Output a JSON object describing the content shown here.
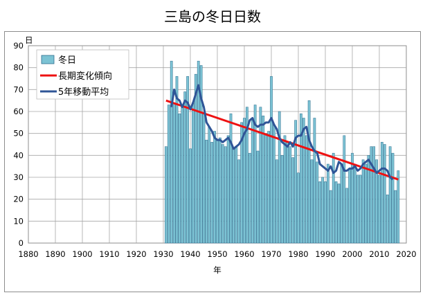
{
  "chart_data": {
    "type": "bar",
    "title": "三島の冬日日数",
    "ylabel": "日",
    "xlabel": "年",
    "xlim": [
      1880,
      2020
    ],
    "ylim": [
      0,
      90
    ],
    "x_ticks": [
      1880,
      1890,
      1900,
      1910,
      1920,
      1930,
      1940,
      1950,
      1960,
      1970,
      1980,
      1990,
      2000,
      2010,
      2020
    ],
    "y_ticks": [
      0,
      10,
      20,
      30,
      40,
      50,
      60,
      70,
      80,
      90
    ],
    "grid": "both",
    "legend_position": "top-left",
    "x": [
      1931,
      1932,
      1933,
      1934,
      1935,
      1936,
      1937,
      1938,
      1939,
      1940,
      1941,
      1942,
      1943,
      1944,
      1945,
      1946,
      1947,
      1948,
      1949,
      1950,
      1951,
      1952,
      1953,
      1954,
      1955,
      1956,
      1957,
      1958,
      1959,
      1960,
      1961,
      1962,
      1963,
      1964,
      1965,
      1966,
      1967,
      1968,
      1969,
      1970,
      1971,
      1972,
      1973,
      1974,
      1975,
      1976,
      1977,
      1978,
      1979,
      1980,
      1981,
      1982,
      1983,
      1984,
      1985,
      1986,
      1987,
      1988,
      1989,
      1990,
      1991,
      1992,
      1993,
      1994,
      1995,
      1996,
      1997,
      1998,
      1999,
      2000,
      2001,
      2002,
      2003,
      2004,
      2005,
      2006,
      2007,
      2008,
      2009,
      2010,
      2011,
      2012,
      2013,
      2014,
      2015,
      2016,
      2017
    ],
    "series": [
      {
        "name": "冬日",
        "type": "bar",
        "color": "#7cc3d4",
        "edge_color": "#2d6b8c",
        "values": [
          44,
          63,
          83,
          64,
          76,
          59,
          62,
          69,
          76,
          43,
          64,
          77,
          83,
          81,
          59,
          47,
          53,
          46,
          51,
          47,
          48,
          45,
          44,
          49,
          59,
          43,
          44,
          38,
          55,
          57,
          62,
          41,
          56,
          63,
          42,
          62,
          58,
          50,
          51,
          76,
          54,
          38,
          60,
          40,
          49,
          46,
          44,
          39,
          56,
          32,
          59,
          57,
          49,
          65,
          38,
          57,
          37,
          28,
          30,
          28,
          36,
          24,
          41,
          28,
          27,
          36,
          49,
          25,
          34,
          41,
          36,
          31,
          31,
          38,
          36,
          40,
          44,
          44,
          38,
          31,
          46,
          45,
          22,
          44,
          41,
          24,
          33
        ]
      },
      {
        "name": "長期変化傾向",
        "type": "line",
        "color": "#ee1111",
        "x": [
          1931,
          2017
        ],
        "values": [
          65,
          29
        ]
      },
      {
        "name": "5年移動平均",
        "type": "line",
        "color": "#2f5597",
        "x": [
          1933,
          1934,
          1935,
          1936,
          1937,
          1938,
          1939,
          1940,
          1941,
          1942,
          1943,
          1944,
          1945,
          1946,
          1947,
          1948,
          1949,
          1950,
          1951,
          1952,
          1953,
          1954,
          1955,
          1956,
          1957,
          1958,
          1959,
          1960,
          1961,
          1962,
          1963,
          1964,
          1965,
          1966,
          1967,
          1968,
          1969,
          1970,
          1971,
          1972,
          1973,
          1974,
          1975,
          1976,
          1977,
          1978,
          1979,
          1980,
          1981,
          1982,
          1983,
          1984,
          1985,
          1986,
          1987,
          1988,
          1989,
          1990,
          1991,
          1992,
          1993,
          1994,
          1995,
          1996,
          1997,
          1998,
          1999,
          2000,
          2001,
          2002,
          2003,
          2004,
          2005,
          2006,
          2007,
          2008,
          2009,
          2010,
          2011,
          2012,
          2013,
          2014,
          2015
        ],
        "values": [
          62,
          70,
          66,
          65,
          62,
          65,
          64,
          61,
          64,
          68,
          72,
          66,
          62,
          55,
          53,
          51,
          48,
          47,
          47,
          46,
          47,
          48,
          46,
          43,
          44,
          45,
          47,
          50,
          52,
          56,
          57,
          54,
          53,
          54,
          54,
          55,
          55,
          57,
          54,
          52,
          48,
          46,
          45,
          44,
          46,
          44,
          48,
          49,
          49,
          52,
          53,
          47,
          44,
          42,
          41,
          36,
          35,
          34,
          33,
          35,
          32,
          33,
          37,
          36,
          33,
          33,
          34,
          34,
          35,
          33,
          34,
          36,
          37,
          38,
          36,
          34,
          32,
          33,
          34,
          34,
          33,
          30,
          29
        ]
      }
    ]
  }
}
